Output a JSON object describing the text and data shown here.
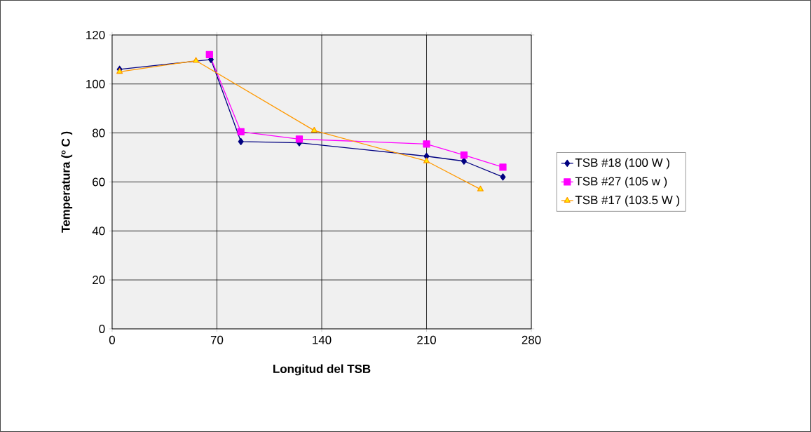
{
  "chart_data": {
    "type": "line",
    "xlabel": "Longitud del TSB",
    "ylabel": "Temperatura (º C )",
    "xlim": [
      0,
      280
    ],
    "xticks": [
      0,
      70,
      140,
      210,
      280
    ],
    "ylim": [
      0,
      120
    ],
    "yticks": [
      0,
      20,
      40,
      60,
      80,
      100,
      120
    ],
    "grid": true,
    "legend": "right",
    "series": [
      {
        "name": "TSB #18 (100 W )",
        "color": "#000080",
        "marker": "diamond",
        "x": [
          5,
          66,
          86,
          125,
          210,
          235,
          261
        ],
        "values": [
          106,
          110,
          76.5,
          76,
          70.5,
          68.5,
          62
        ]
      },
      {
        "name": "TSB #27 (105 w )",
        "color": "#ff00ff",
        "marker": "square",
        "x": [
          65,
          86,
          125,
          210,
          235,
          261
        ],
        "values": [
          112,
          80.5,
          77.5,
          75.5,
          71,
          66
        ]
      },
      {
        "name": "TSB #17 (103.5 W )",
        "color": "#ff9900",
        "marker": "triangle",
        "x": [
          5,
          56,
          135,
          210,
          246
        ],
        "values": [
          105,
          109.5,
          81,
          68.5,
          57
        ]
      }
    ]
  }
}
